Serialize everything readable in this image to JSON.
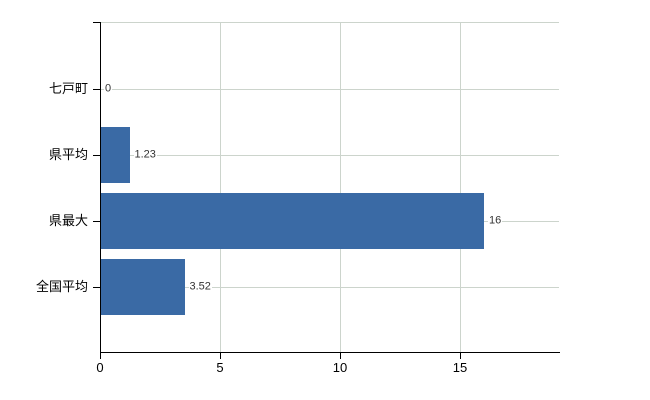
{
  "chart_data": {
    "type": "bar",
    "orientation": "horizontal",
    "title": "",
    "categories": [
      "七戸町",
      "県平均",
      "県最大",
      "全国平均"
    ],
    "values": [
      0,
      1.23,
      16,
      3.52
    ],
    "value_labels": [
      "0",
      "1.23",
      "16",
      "3.52"
    ],
    "xlim": [
      0,
      19.125
    ],
    "xticks": [
      0,
      5,
      10,
      15
    ],
    "xtick_labels": [
      "0",
      "5",
      "10",
      "15"
    ],
    "grid": true,
    "legend": "none",
    "bar_color": "#3a6aa5",
    "grid_color": "#ccd4cc",
    "axis_color": "#000000",
    "background_color": "#ffffff"
  }
}
